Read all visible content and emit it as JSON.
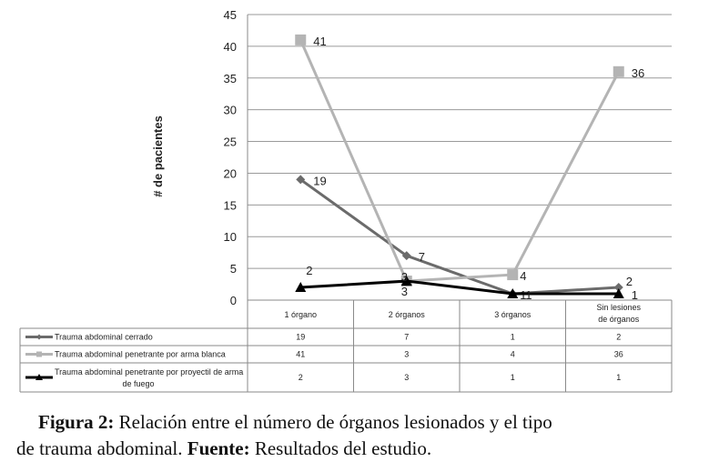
{
  "chart_data": {
    "type": "line",
    "ylabel": "# de pacientes",
    "ylim": [
      0,
      45
    ],
    "yticks": [
      0,
      5,
      10,
      15,
      20,
      25,
      30,
      35,
      40,
      45
    ],
    "categories": [
      "1 órgano",
      "2 órganos",
      "3 órganos",
      "Sin lesiones de órganos"
    ],
    "series": [
      {
        "name": "Trauma abdominal cerrado",
        "values": [
          19,
          7,
          1,
          2
        ],
        "color": "#6b6b6b",
        "marker": "diamond",
        "labels": [
          "19",
          "7",
          "1",
          "2"
        ]
      },
      {
        "name": "Trauma abdominal penetrante por arma blanca",
        "values": [
          41,
          3,
          4,
          36
        ],
        "color": "#b4b4b4",
        "marker": "square",
        "labels": [
          "41",
          "3",
          "4",
          "36"
        ]
      },
      {
        "name": "Trauma abdominal penetrante por proyectil de arma de fuego",
        "values": [
          2,
          3,
          1,
          1
        ],
        "color": "#000000",
        "marker": "triangle",
        "labels": [
          "2",
          "3",
          "1",
          "1"
        ]
      }
    ],
    "grid": true,
    "legend": "data-table-below"
  },
  "caption": {
    "fig_label": "Figura 2:",
    "fig_text": " Relación entre el número de órganos lesionados y el tipo",
    "line2_text": "de trauma abdominal. ",
    "source_label": "Fuente:",
    "source_text": " Resultados del estudio."
  }
}
